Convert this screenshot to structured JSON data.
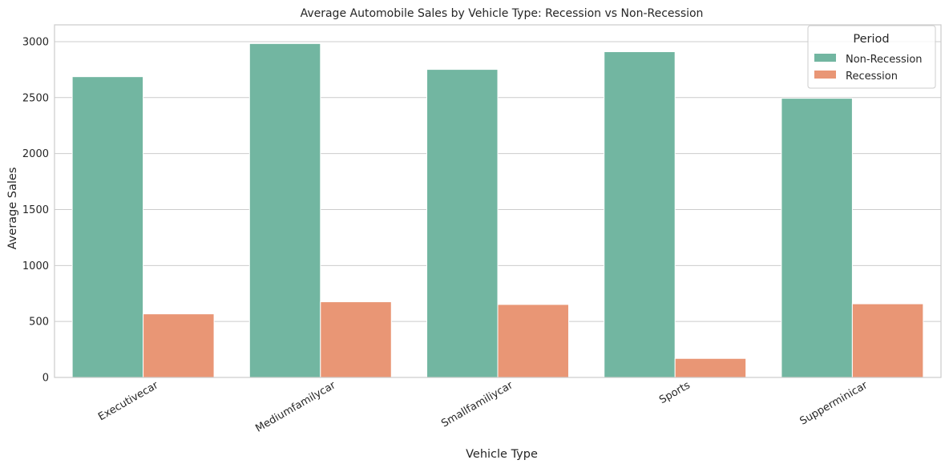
{
  "chart_data": {
    "type": "bar",
    "title": "Average Automobile Sales by Vehicle Type: Recession vs Non-Recession",
    "xlabel": "Vehicle Type",
    "ylabel": "Average Sales",
    "categories": [
      "Executivecar",
      "Mediumfamilycar",
      "Smallfamiliycar",
      "Sports",
      "Supperminicar"
    ],
    "series": [
      {
        "name": "Non-Recession",
        "color": "#72b6a1",
        "values": [
          2687,
          2983,
          2752,
          2910,
          2494
        ]
      },
      {
        "name": "Recession",
        "color": "#e99675",
        "values": [
          568,
          676,
          652,
          170,
          658
        ]
      }
    ],
    "ylim": [
      0,
      3150
    ],
    "yticks": [
      0,
      500,
      1000,
      1500,
      2000,
      2500,
      3000
    ],
    "grid": true,
    "legend": {
      "title": "Period",
      "placement": "top-right"
    },
    "xtick_rotation": 30
  }
}
